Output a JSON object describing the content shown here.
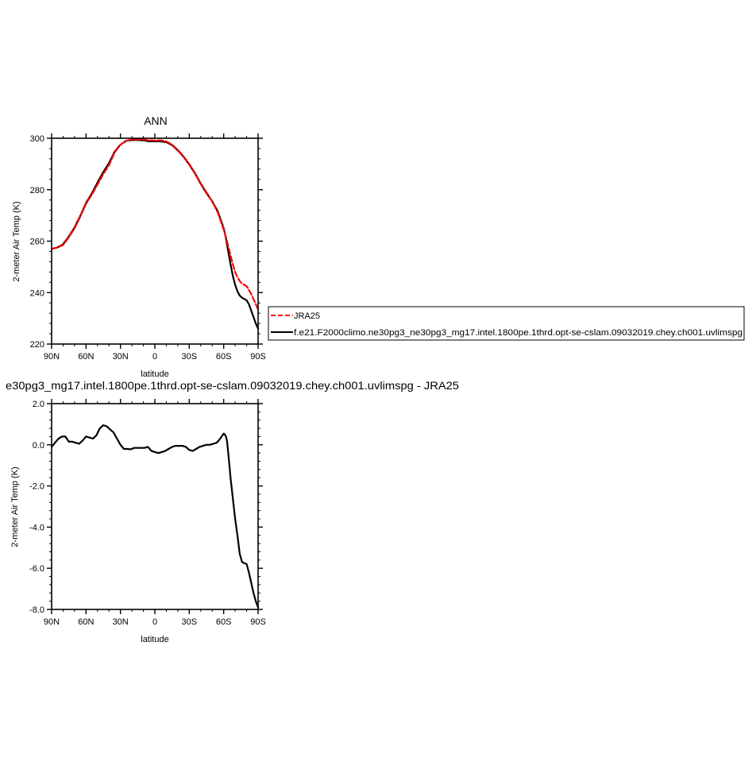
{
  "chart_data": [
    {
      "type": "line",
      "title": "ANN",
      "xlabel": "latitude",
      "ylabel": "2-meter Air Temp (K)",
      "xlim": [
        -90,
        90
      ],
      "ylim": [
        220,
        300
      ],
      "x_ticks": [
        "90N",
        "60N",
        "30N",
        "0",
        "30S",
        "60S",
        "90S"
      ],
      "y_ticks": [
        "300",
        "280",
        "260",
        "240",
        "220"
      ],
      "legend_position": "right",
      "series": [
        {
          "name": "JRA25",
          "color": "#ff0000",
          "dash": "dashed",
          "x": [
            -90,
            -85,
            -80,
            -75,
            -70,
            -65,
            -60,
            -55,
            -50,
            -45,
            -40,
            -35,
            -30,
            -25,
            -20,
            -15,
            -10,
            -5,
            0,
            5,
            10,
            15,
            20,
            25,
            30,
            35,
            40,
            45,
            50,
            55,
            60,
            62,
            64,
            66,
            68,
            70,
            72,
            74,
            76,
            78,
            80,
            82,
            84,
            86,
            88,
            90
          ],
          "y": [
            257,
            257.5,
            258.5,
            261.5,
            265,
            269.5,
            274.5,
            278,
            282,
            286,
            289.5,
            294.5,
            297.5,
            299,
            299.5,
            299.5,
            299.5,
            299.2,
            299.1,
            299.2,
            298.8,
            297.5,
            295.5,
            293,
            290,
            286.5,
            282.5,
            279,
            275.5,
            271,
            264.5,
            261.5,
            258,
            254.5,
            251,
            248,
            246,
            244.5,
            243.5,
            243,
            242.5,
            241,
            239.5,
            237.5,
            235.5,
            233.5
          ]
        },
        {
          "name": "f.e21.F2000climo.ne30pg3_ne30pg3_mg17.intel.1800pe.1thrd.opt-se-cslam.09032019.chey.ch001.uvlimspg",
          "color": "#000000",
          "dash": "solid",
          "x": [
            -90,
            -85,
            -80,
            -75,
            -70,
            -65,
            -60,
            -55,
            -50,
            -45,
            -40,
            -35,
            -30,
            -25,
            -20,
            -15,
            -10,
            -5,
            0,
            5,
            10,
            15,
            20,
            25,
            30,
            35,
            40,
            45,
            50,
            55,
            60,
            62,
            64,
            66,
            68,
            70,
            72,
            74,
            76,
            78,
            80,
            82,
            84,
            86,
            88,
            90
          ],
          "y": [
            257,
            257.5,
            258.8,
            261.8,
            265.3,
            269.8,
            274.8,
            278.5,
            282.8,
            286.8,
            290.3,
            294.8,
            297.5,
            299,
            299.3,
            299.3,
            299.2,
            298.8,
            298.8,
            298.8,
            298.5,
            297.3,
            295.3,
            292.8,
            289.8,
            286.3,
            282.3,
            278.7,
            275.5,
            271.5,
            265,
            261,
            256,
            251,
            246.5,
            243,
            240.5,
            238.8,
            238,
            237.5,
            237,
            235.5,
            233,
            230.5,
            228,
            226
          ]
        }
      ]
    },
    {
      "type": "line",
      "title": "e30pg3_mg17.intel.1800pe.1thrd.opt-se-cslam.09032019.chey.ch001.uvlimspg - JRA25",
      "xlabel": "latitude",
      "ylabel": "2-meter Air Temp (K)",
      "xlim": [
        -90,
        90
      ],
      "ylim": [
        -8,
        2
      ],
      "x_ticks": [
        "90N",
        "60N",
        "30N",
        "0",
        "30S",
        "60S",
        "90S"
      ],
      "y_ticks": [
        "2.0",
        "0.0",
        "-2.0",
        "-4.0",
        "-6.0",
        "-8.0"
      ],
      "series": [
        {
          "color": "#000000",
          "dash": "solid",
          "x": [
            -90,
            -87,
            -84,
            -81,
            -78,
            -75,
            -72,
            -69,
            -66,
            -63,
            -60,
            -57,
            -54,
            -51,
            -48,
            -45,
            -42,
            -39,
            -36,
            -33,
            -30,
            -27,
            -24,
            -21,
            -18,
            -15,
            -12,
            -9,
            -6,
            -3,
            0,
            3,
            6,
            9,
            12,
            15,
            18,
            21,
            24,
            27,
            30,
            33,
            36,
            39,
            42,
            45,
            48,
            51,
            54,
            57,
            60,
            61,
            62,
            63,
            64,
            65,
            66,
            68,
            70,
            72,
            74,
            76,
            78,
            80,
            82,
            84,
            86,
            88,
            90
          ],
          "y": [
            -0.1,
            0.1,
            0.3,
            0.4,
            0.4,
            0.15,
            0.15,
            0.1,
            0.05,
            0.2,
            0.4,
            0.35,
            0.3,
            0.45,
            0.8,
            0.95,
            0.9,
            0.75,
            0.6,
            0.3,
            0.0,
            -0.2,
            -0.2,
            -0.22,
            -0.15,
            -0.15,
            -0.15,
            -0.15,
            -0.1,
            -0.3,
            -0.35,
            -0.4,
            -0.35,
            -0.3,
            -0.2,
            -0.1,
            -0.05,
            -0.05,
            -0.05,
            -0.1,
            -0.25,
            -0.3,
            -0.2,
            -0.1,
            -0.05,
            0.0,
            0.0,
            0.05,
            0.1,
            0.3,
            0.55,
            0.5,
            0.4,
            0.15,
            -0.4,
            -1.0,
            -1.6,
            -2.6,
            -3.6,
            -4.4,
            -5.3,
            -5.7,
            -5.75,
            -5.8,
            -6.2,
            -6.7,
            -7.2,
            -7.6,
            -7.9
          ]
        }
      ]
    }
  ]
}
